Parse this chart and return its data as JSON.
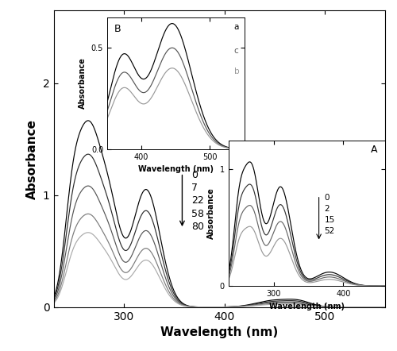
{
  "main_xlim": [
    230,
    560
  ],
  "main_ylim": [
    0,
    2.65
  ],
  "main_xlabel": "Wavelength (nm)",
  "main_ylabel": "Absorbance",
  "main_xticks": [
    300,
    400,
    500
  ],
  "main_yticks": [
    0,
    1,
    2
  ],
  "main_labels": [
    "0",
    "7",
    "22",
    "58",
    "80"
  ],
  "insetA_xlim": [
    235,
    460
  ],
  "insetA_ylim": [
    0.0,
    1.25
  ],
  "insetA_xlabel": "Wavelength (nm)",
  "insetA_ylabel": "Absorbance",
  "insetA_xticks": [
    300,
    400
  ],
  "insetA_yticks": [
    0.0,
    1.0
  ],
  "insetA_labels": [
    "0",
    "2",
    "15",
    "52"
  ],
  "insetB_xlim": [
    350,
    550
  ],
  "insetB_ylim": [
    0.0,
    0.65
  ],
  "insetB_xlabel": "Wavelength (nm)",
  "insetB_ylabel": "Absorbance",
  "insetB_xticks": [
    400,
    500
  ],
  "insetB_yticks": [
    0.0,
    0.5
  ],
  "insetB_labels": [
    "a",
    "c",
    "b"
  ],
  "background_color": "#ffffff"
}
